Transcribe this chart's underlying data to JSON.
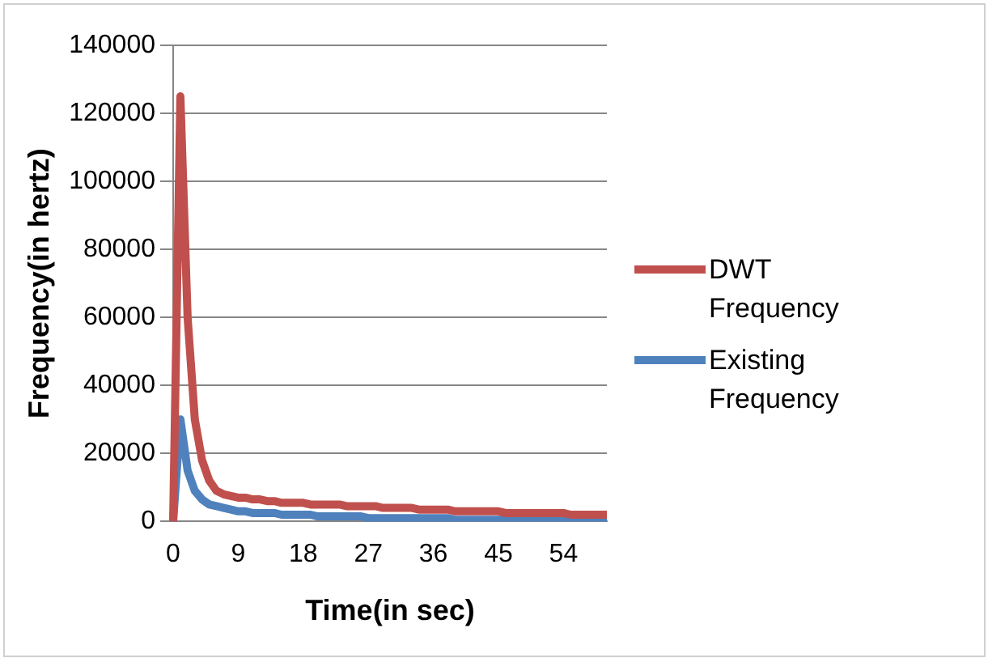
{
  "chart_data": {
    "type": "line",
    "xlabel": "Time(in sec)",
    "ylabel": "Frequency(in hertz)",
    "categories": [
      "0",
      null,
      null,
      null,
      null,
      null,
      null,
      null,
      null,
      "9",
      null,
      null,
      null,
      null,
      null,
      null,
      null,
      null,
      "18",
      null,
      null,
      null,
      null,
      null,
      null,
      null,
      null,
      "27",
      null,
      null,
      null,
      null,
      null,
      null,
      null,
      null,
      "36",
      null,
      null,
      null,
      null,
      null,
      null,
      null,
      null,
      "45",
      null,
      null,
      null,
      null,
      null,
      null,
      null,
      null,
      "54",
      null,
      null,
      null,
      null,
      null,
      null
    ],
    "series": [
      {
        "name": "DWT Frequency",
        "color": "#c0504d",
        "values": [
          0,
          125000,
          60000,
          30000,
          18000,
          12000,
          9000,
          8000,
          7500,
          7000,
          7000,
          6500,
          6500,
          6000,
          6000,
          5500,
          5500,
          5500,
          5500,
          5000,
          5000,
          5000,
          5000,
          5000,
          4500,
          4500,
          4500,
          4500,
          4500,
          4000,
          4000,
          4000,
          4000,
          4000,
          3500,
          3500,
          3500,
          3500,
          3500,
          3000,
          3000,
          3000,
          3000,
          3000,
          3000,
          3000,
          2500,
          2500,
          2500,
          2500,
          2500,
          2500,
          2500,
          2500,
          2500,
          2000,
          2000,
          2000,
          2000,
          2000,
          2000
        ]
      },
      {
        "name": "Existing Frequency",
        "color": "#4f81bd",
        "values": [
          0,
          30000,
          15000,
          9000,
          6500,
          5000,
          4500,
          4000,
          3500,
          3000,
          3000,
          2500,
          2500,
          2500,
          2500,
          2000,
          2000,
          2000,
          2000,
          2000,
          1500,
          1500,
          1500,
          1500,
          1500,
          1500,
          1500,
          1000,
          1000,
          1000,
          1000,
          1000,
          1000,
          1000,
          1000,
          1000,
          1000,
          1000,
          1000,
          500,
          500,
          500,
          500,
          500,
          500,
          500,
          500,
          500,
          500,
          500,
          500,
          500,
          500,
          500,
          500,
          500,
          500,
          500,
          500,
          500,
          500
        ]
      }
    ],
    "ylim": [
      0,
      140000
    ],
    "yticks": [
      0,
      20000,
      40000,
      60000,
      80000,
      100000,
      120000,
      140000
    ],
    "grid": "y",
    "legend": "right",
    "marker": "none",
    "line_style": "solid"
  }
}
